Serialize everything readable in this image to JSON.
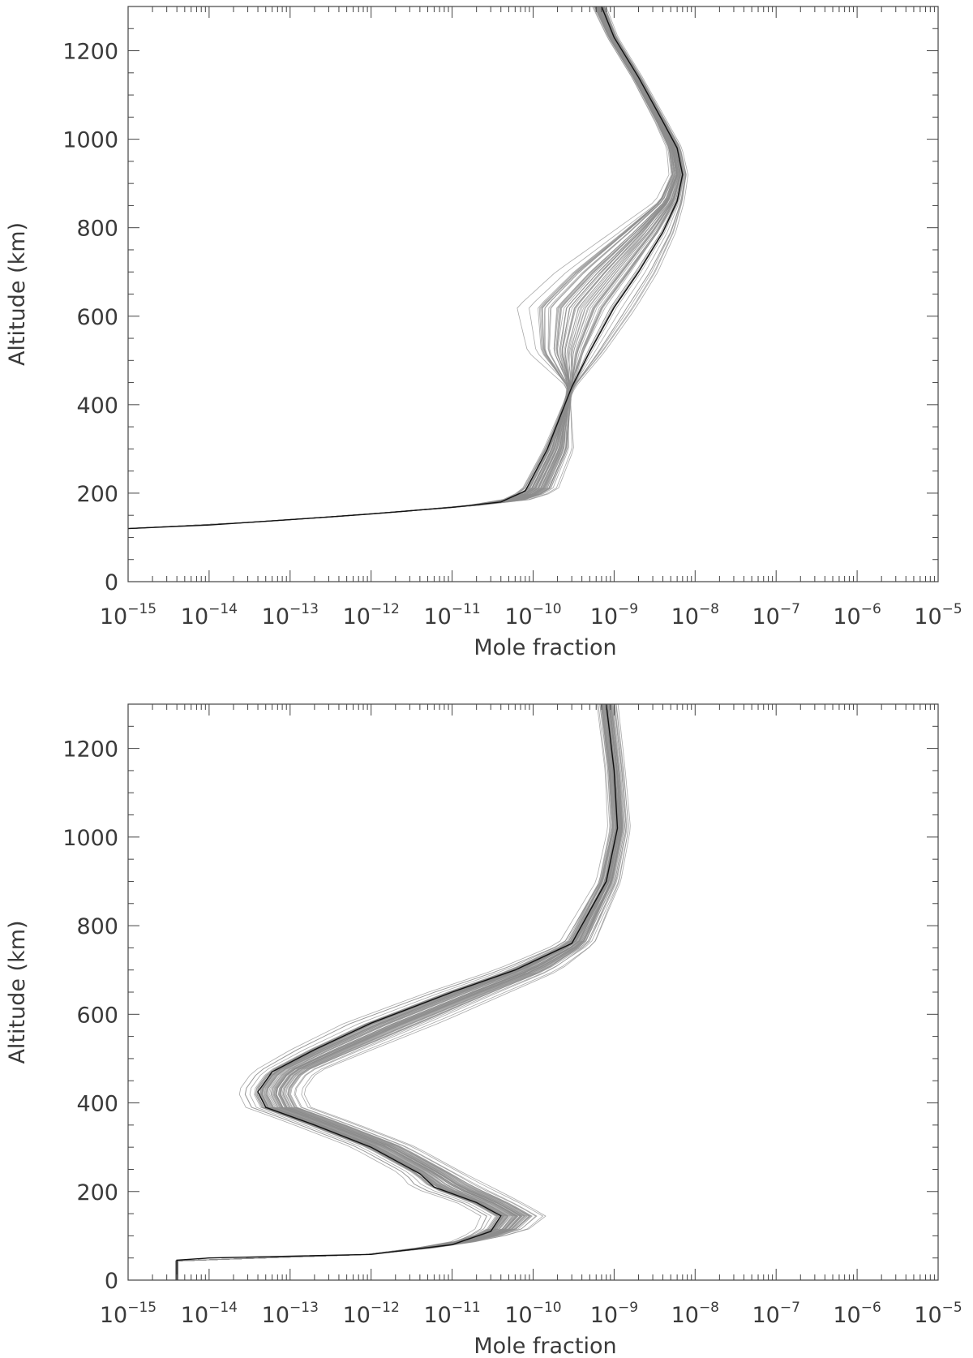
{
  "chart_data": [
    {
      "type": "line",
      "panel": "top",
      "xlabel": "Mole fraction",
      "ylabel": "Altitude (km)",
      "xscale": "log",
      "xlim": [
        1e-15,
        1e-05
      ],
      "ylim": [
        0,
        1300
      ],
      "x_tick_exponents": [
        -15,
        -14,
        -13,
        -12,
        -11,
        -10,
        -9,
        -8,
        -7,
        -6,
        -5
      ],
      "x_tick_base": "10",
      "y_ticks": [
        0,
        200,
        400,
        600,
        800,
        1000,
        1200
      ],
      "y_tick_labels": [
        "0",
        "200",
        "400",
        "600",
        "800",
        "1000",
        "1200"
      ],
      "grid": false,
      "colors": {
        "ensemble": "#8c8c8c",
        "nominal": "#111111",
        "axes": "#444444"
      },
      "series": [
        {
          "role": "nominal",
          "points": [
            [
              1e-15,
              120
            ],
            [
              1e-14,
              128
            ],
            [
              1e-13,
              140
            ],
            [
              1e-12,
              153
            ],
            [
              1e-11,
              168
            ],
            [
              4e-11,
              180
            ],
            [
              8e-11,
              205
            ],
            [
              1.5e-10,
              300
            ],
            [
              3e-10,
              440
            ],
            [
              5e-10,
              520
            ],
            [
              1e-09,
              620
            ],
            [
              2e-09,
              700
            ],
            [
              4e-09,
              790
            ],
            [
              6e-09,
              860
            ],
            [
              7e-09,
              920
            ],
            [
              6e-09,
              980
            ],
            [
              4e-09,
              1040
            ],
            [
              2e-09,
              1140
            ],
            [
              1e-09,
              1230
            ],
            [
              7e-10,
              1300
            ]
          ]
        },
        {
          "role": "ensemble",
          "points": [
            [
              1e-15,
              120
            ],
            [
              1e-14,
              128
            ],
            [
              1e-13,
              140
            ],
            [
              1e-12,
              153
            ],
            [
              1e-11,
              168
            ],
            [
              6e-11,
              180
            ],
            [
              1.5e-10,
              205
            ],
            [
              2.5e-10,
              300
            ],
            [
              2.8e-10,
              440
            ],
            [
              1.5e-10,
              520
            ],
            [
              1.5e-10,
              620
            ],
            [
              4e-10,
              700
            ],
            [
              1.5e-09,
              790
            ],
            [
              4e-09,
              860
            ],
            [
              5.5e-09,
              920
            ],
            [
              5e-09,
              980
            ],
            [
              3.5e-09,
              1040
            ],
            [
              1.8e-09,
              1140
            ],
            [
              9e-10,
              1230
            ],
            [
              6e-10,
              1300
            ]
          ]
        }
      ]
    },
    {
      "type": "line",
      "panel": "bottom",
      "xlabel": "Mole fraction",
      "ylabel": "Altitude (km)",
      "xscale": "log",
      "xlim": [
        1e-15,
        1e-05
      ],
      "ylim": [
        0,
        1300
      ],
      "x_tick_exponents": [
        -15,
        -14,
        -13,
        -12,
        -11,
        -10,
        -9,
        -8,
        -7,
        -6,
        -5
      ],
      "x_tick_base": "10",
      "y_ticks": [
        0,
        200,
        400,
        600,
        800,
        1000,
        1200
      ],
      "y_tick_labels": [
        "0",
        "200",
        "400",
        "600",
        "800",
        "1000",
        "1200"
      ],
      "grid": false,
      "colors": {
        "ensemble": "#8c8c8c",
        "nominal": "#111111",
        "axes": "#444444"
      },
      "series": [
        {
          "role": "nominal",
          "points": [
            [
              4e-15,
              0
            ],
            [
              4e-15,
              45
            ],
            [
              1e-14,
              50
            ],
            [
              1e-12,
              58
            ],
            [
              1e-11,
              80
            ],
            [
              3e-11,
              110
            ],
            [
              4e-11,
              145
            ],
            [
              2e-11,
              175
            ],
            [
              6e-12,
              210
            ],
            [
              4e-12,
              240
            ],
            [
              1e-12,
              300
            ],
            [
              2e-13,
              350
            ],
            [
              5e-14,
              390
            ],
            [
              4e-14,
              425
            ],
            [
              6e-14,
              470
            ],
            [
              2e-13,
              520
            ],
            [
              1e-12,
              580
            ],
            [
              1e-11,
              650
            ],
            [
              6e-11,
              700
            ],
            [
              3e-10,
              760
            ],
            [
              8e-10,
              900
            ],
            [
              1.1e-09,
              1020
            ],
            [
              1e-09,
              1150
            ],
            [
              8e-10,
              1300
            ]
          ]
        },
        {
          "role": "ensemble",
          "points": [
            [
              4e-15,
              0
            ],
            [
              4e-15,
              45
            ],
            [
              1e-14,
              50
            ],
            [
              1e-12,
              58
            ],
            [
              1e-11,
              80
            ],
            [
              5e-11,
              110
            ],
            [
              8e-11,
              145
            ],
            [
              4e-11,
              175
            ],
            [
              1.5e-11,
              210
            ],
            [
              8e-12,
              240
            ],
            [
              2e-12,
              300
            ],
            [
              4e-13,
              350
            ],
            [
              1e-13,
              390
            ],
            [
              8e-14,
              425
            ],
            [
              1.2e-13,
              470
            ],
            [
              5e-13,
              520
            ],
            [
              3e-12,
              580
            ],
            [
              2.5e-11,
              650
            ],
            [
              1.2e-10,
              700
            ],
            [
              4e-10,
              760
            ],
            [
              9e-10,
              900
            ],
            [
              1.2e-09,
              1020
            ],
            [
              1.05e-09,
              1150
            ],
            [
              8.5e-10,
              1300
            ]
          ]
        }
      ]
    }
  ]
}
